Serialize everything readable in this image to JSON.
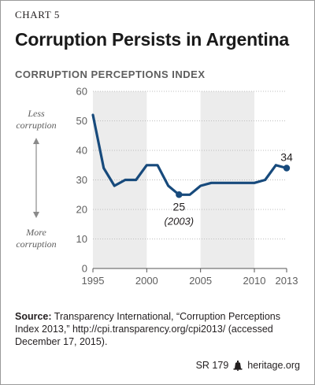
{
  "header": {
    "chart_number": "CHART 5",
    "title": "Corruption Persists in Argentina",
    "subtitle": "CORRUPTION PERCEPTIONS INDEX"
  },
  "annotations": {
    "less_line1": "Less",
    "less_line2": "corruption",
    "more_line1": "More",
    "more_line2": "corruption",
    "low_value": "25",
    "low_year": "(2003)",
    "end_value": "34"
  },
  "source": {
    "label": "Source:",
    "text": " Transparency International, “Corruption Perceptions Index 2013,” http://cpi.transparency.org/cpi2013/ (accessed December 17, 2015)."
  },
  "footer": {
    "report_id": "SR 179",
    "site": "heritage.org"
  },
  "colors": {
    "line": "#174a7c",
    "band": "#ececec",
    "grid": "#bdbdbd",
    "text_muted": "#5e5e5e"
  },
  "chart_data": {
    "type": "line",
    "title": "Corruption Persists in Argentina",
    "subtitle": "CORRUPTION PERCEPTIONS INDEX",
    "xlabel": "",
    "ylabel": "",
    "xlim": [
      1995,
      2013
    ],
    "ylim": [
      0,
      60
    ],
    "x_ticks": [
      1995,
      2000,
      2005,
      2010,
      2013
    ],
    "y_ticks": [
      0,
      10,
      20,
      30,
      40,
      50,
      60
    ],
    "shaded_bands": [
      [
        1995,
        2000
      ],
      [
        2005,
        2010
      ]
    ],
    "grid": true,
    "series": [
      {
        "x": [
          1995,
          1996,
          1997,
          1998,
          1999,
          2000,
          2001,
          2002,
          2003,
          2004,
          2005,
          2006,
          2007,
          2008,
          2009,
          2010,
          2011,
          2012,
          2013
        ],
        "values": [
          52,
          34,
          28,
          30,
          30,
          35,
          35,
          28,
          25,
          25,
          28,
          29,
          29,
          29,
          29,
          29,
          30,
          35,
          34
        ],
        "markers": [
          2003,
          2013
        ]
      }
    ]
  }
}
